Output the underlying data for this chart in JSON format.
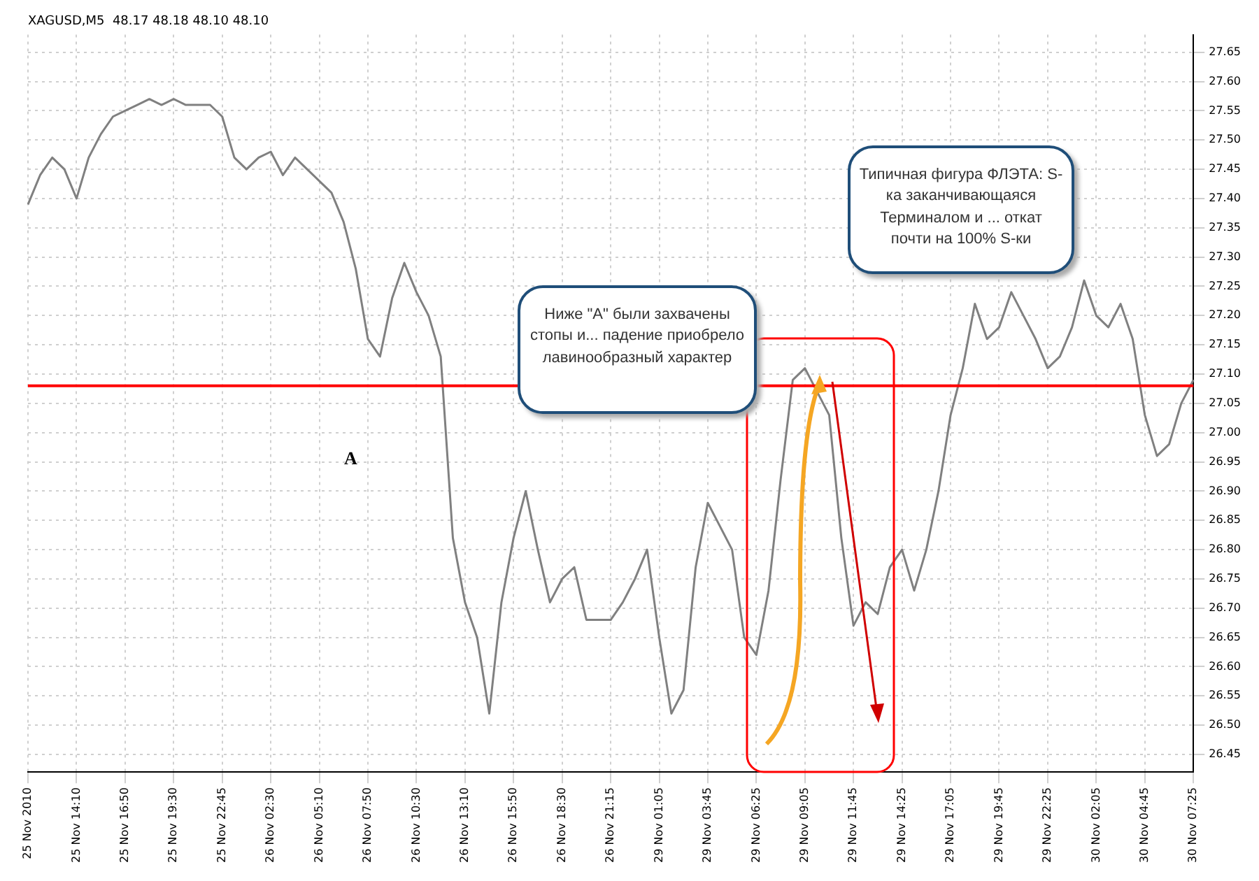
{
  "chart_data": {
    "type": "line",
    "title": "XAGUSD,M5  48.17 48.18 48.10 48.10",
    "categories": [
      "25 Nov 2010",
      null,
      null,
      null,
      "25 Nov 14:10",
      null,
      null,
      null,
      "25 Nov 16:50",
      null,
      null,
      null,
      "25 Nov 19:30",
      null,
      null,
      null,
      "25 Nov 22:45",
      null,
      null,
      null,
      "26 Nov 02:30",
      null,
      null,
      null,
      "26 Nov 05:10",
      null,
      null,
      null,
      "26 Nov 07:50",
      null,
      null,
      null,
      "26 Nov 10:30",
      null,
      null,
      null,
      "26 Nov 13:10",
      null,
      null,
      null,
      "26 Nov 15:50",
      null,
      null,
      null,
      "26 Nov 18:30",
      null,
      null,
      null,
      "26 Nov 21:15",
      null,
      null,
      null,
      "29 Nov 01:05",
      null,
      null,
      null,
      "29 Nov 03:45",
      null,
      null,
      null,
      "29 Nov 06:25",
      null,
      null,
      null,
      "29 Nov 09:05",
      null,
      null,
      null,
      "29 Nov 11:45",
      null,
      null,
      null,
      "29 Nov 14:25",
      null,
      null,
      null,
      "29 Nov 17:05",
      null,
      null,
      null,
      "29 Nov 19:45",
      null,
      null,
      null,
      "29 Nov 22:25",
      null,
      null,
      null,
      "30 Nov 02:05",
      null,
      null,
      null,
      "30 Nov 04:45",
      null,
      null,
      null,
      "30 Nov 07:25"
    ],
    "series": [
      {
        "color": "#808080",
        "values": [
          27.39,
          27.44,
          27.47,
          27.45,
          27.4,
          27.47,
          27.51,
          27.54,
          27.55,
          27.56,
          27.57,
          27.56,
          27.57,
          27.56,
          27.56,
          27.56,
          27.54,
          27.47,
          27.45,
          27.47,
          27.48,
          27.44,
          27.47,
          27.45,
          27.43,
          27.41,
          27.36,
          27.28,
          27.16,
          27.13,
          27.23,
          27.29,
          27.24,
          27.2,
          27.13,
          26.82,
          26.71,
          26.65,
          26.52,
          26.71,
          26.82,
          26.9,
          26.8,
          26.71,
          26.75,
          26.77,
          26.68,
          26.68,
          26.68,
          26.71,
          26.75,
          26.8,
          26.65,
          26.52,
          26.56,
          26.77,
          26.88,
          26.84,
          26.8,
          26.65,
          26.62,
          26.73,
          26.92,
          27.09,
          27.11,
          27.07,
          27.03,
          26.82,
          26.67,
          26.71,
          26.69,
          26.77,
          26.8,
          26.73,
          26.8,
          26.9,
          27.03,
          27.11,
          27.22,
          27.16,
          27.18,
          27.24,
          27.2,
          27.16,
          27.11,
          27.13,
          27.18,
          27.26,
          27.2,
          27.18,
          27.22,
          27.16,
          27.03,
          26.96,
          26.98,
          27.05,
          27.09
        ]
      }
    ],
    "ylim": [
      26.42,
      27.68
    ],
    "yticks": [
      26.45,
      {
        "value": 26.5,
        "label": "26.50"
      },
      26.55,
      {
        "value": 26.6,
        "label": "26.60"
      },
      26.65,
      {
        "value": 26.7,
        "label": "26.70"
      },
      26.75,
      {
        "value": 26.8,
        "label": "26.80"
      },
      26.85,
      {
        "value": 26.9,
        "label": "26.90"
      },
      26.95,
      {
        "value": 27.0,
        "label": "27.00"
      },
      27.05,
      {
        "value": 27.1,
        "label": "27.10"
      },
      27.15,
      {
        "value": 27.2,
        "label": "27.20"
      },
      27.25,
      {
        "value": 27.3,
        "label": "27.30"
      },
      27.35,
      {
        "value": 27.4,
        "label": "27.40"
      },
      27.45,
      {
        "value": 27.5,
        "label": "27.50"
      },
      27.55,
      {
        "value": 27.6,
        "label": "27.60"
      },
      27.65
    ],
    "ref_lines": [
      {
        "axis": "y",
        "value": 27.08,
        "color": "#ff0000"
      }
    ],
    "annotations": [
      "A",
      "Ниже \"А\" были захвачены стопы и... падение приобрело лавинообразный характер",
      "Типичная фигура ФЛЭТА: S-ка заканчивающаяся Терминалом и ... откат почти на 100% S-ки"
    ],
    "grid": true,
    "marker": "none",
    "line_style": "solid",
    "legend": false
  }
}
